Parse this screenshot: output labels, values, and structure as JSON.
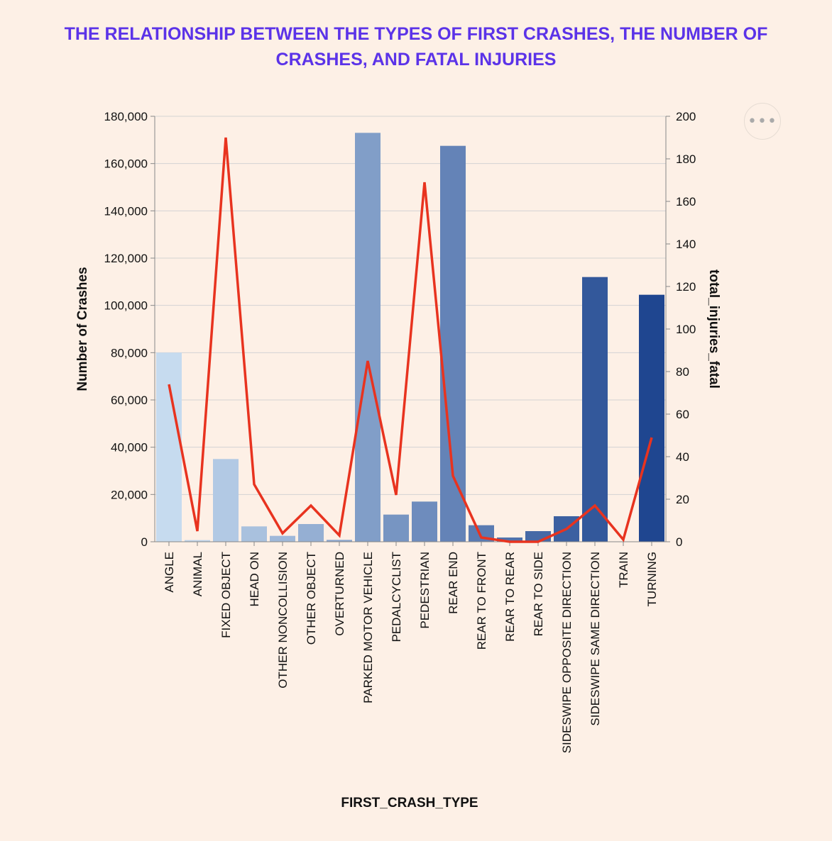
{
  "title": {
    "line1": "THE RELATIONSHIP BETWEEN THE TYPES OF FIRST CRASHES, THE NUMBER OF",
    "line2": "CRASHES, AND FATAL INJURIES"
  },
  "menu": {
    "icon": "ellipsis-icon",
    "glyph": "•••"
  },
  "colors": {
    "title": "#5b33e8",
    "line": "#e8331f",
    "bar_light": "#c6dbef",
    "bar_dark": "#1f4690",
    "grid": "#d3d3d3",
    "background": "#fdf0e6"
  },
  "chart_data": {
    "type": "bar",
    "xlabel": "FIRST_CRASH_TYPE",
    "ylabel": "Number of Crashes",
    "y2label": "total_injuries_fatal",
    "ylim": [
      0,
      180000
    ],
    "y2lim": [
      0,
      200
    ],
    "yticks": [
      0,
      20000,
      40000,
      60000,
      80000,
      100000,
      120000,
      140000,
      160000,
      180000
    ],
    "yticklabels": [
      "0",
      "20,000",
      "40,000",
      "60,000",
      "80,000",
      "100,000",
      "120,000",
      "140,000",
      "160,000",
      "180,000"
    ],
    "y2ticks": [
      0,
      20,
      40,
      60,
      80,
      100,
      120,
      140,
      160,
      180,
      200
    ],
    "y2ticklabels": [
      "0",
      "20",
      "40",
      "60",
      "80",
      "100",
      "120",
      "140",
      "160",
      "180",
      "200"
    ],
    "grid": true,
    "categories": [
      "ANGLE",
      "ANIMAL",
      "FIXED OBJECT",
      "HEAD ON",
      "OTHER NONCOLLISION",
      "OTHER OBJECT",
      "OVERTURNED",
      "PARKED MOTOR VEHICLE",
      "PEDALCYCLIST",
      "PEDESTRIAN",
      "REAR END",
      "REAR TO FRONT",
      "REAR TO REAR",
      "REAR TO SIDE",
      "SIDESWIPE OPPOSITE DIRECTION",
      "SIDESWIPE SAME DIRECTION",
      "TRAIN",
      "TURNING"
    ],
    "series": [
      {
        "type": "bar",
        "values": [
          80000,
          700,
          35000,
          6500,
          2500,
          7500,
          800,
          173000,
          11500,
          17000,
          167500,
          7000,
          1800,
          4500,
          10800,
          112000,
          100,
          104500
        ]
      },
      {
        "type": "line",
        "axis": "right",
        "values": [
          74,
          5,
          190,
          27,
          4,
          17,
          3,
          85,
          22,
          169,
          31,
          2,
          0,
          0,
          6,
          17,
          1,
          49
        ]
      }
    ]
  }
}
